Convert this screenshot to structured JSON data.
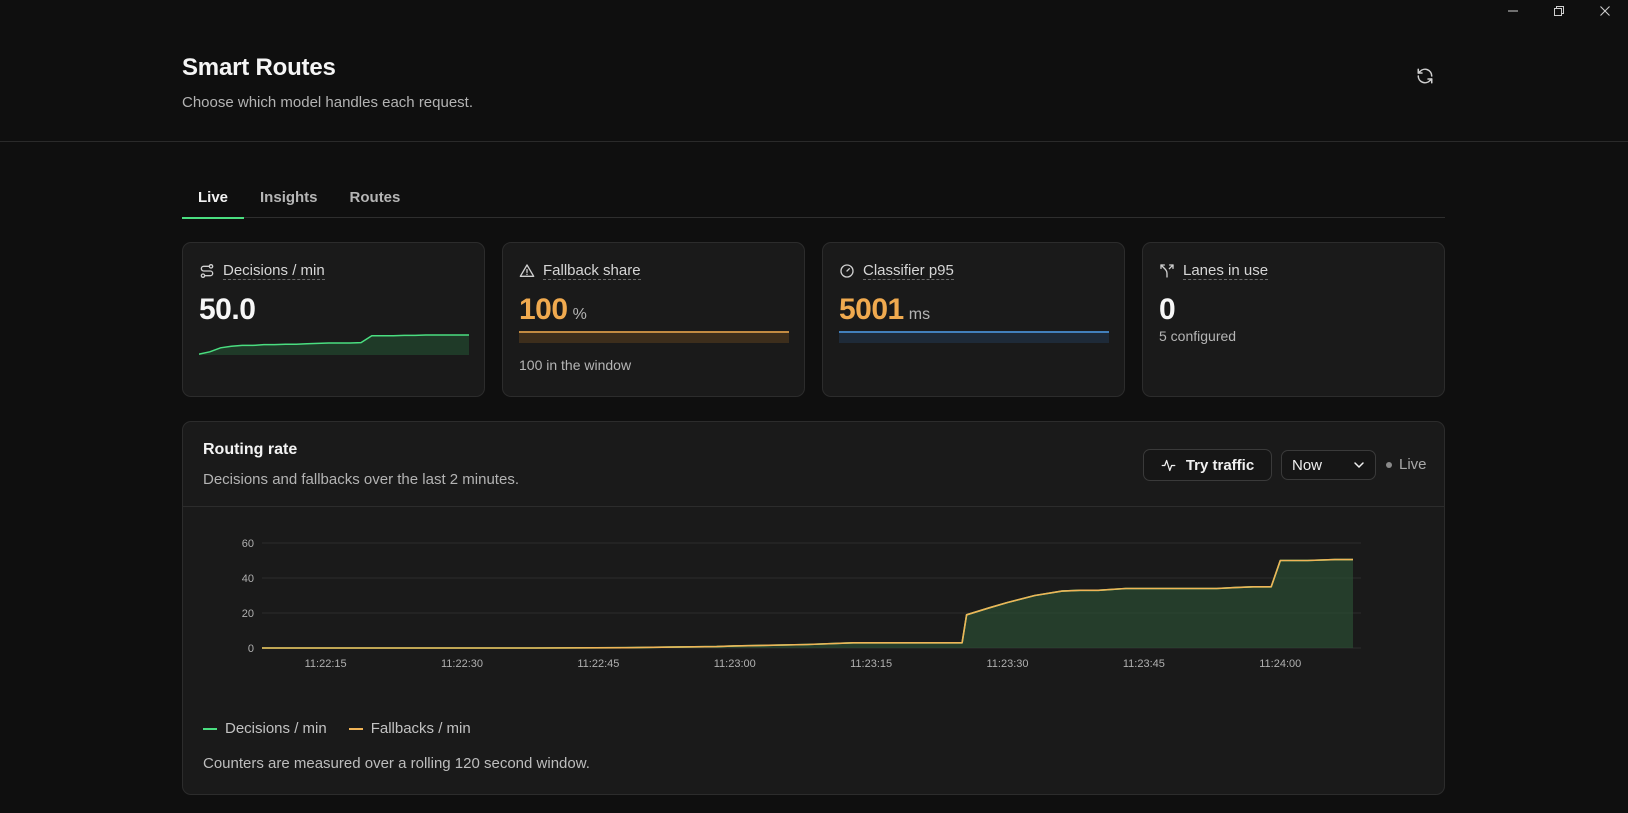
{
  "header": {
    "title": "Smart Routes",
    "subtitle": "Choose which model handles each request.",
    "refresh_icon": "refresh-icon"
  },
  "tabs": [
    {
      "label": "Live",
      "active": true
    },
    {
      "label": "Insights",
      "active": false
    },
    {
      "label": "Routes",
      "active": false
    }
  ],
  "cards": {
    "decisions": {
      "label": "Decisions / min",
      "value": "50.0",
      "icon": "route-icon"
    },
    "fallback": {
      "label": "Fallback share",
      "value": "100",
      "unit": "%",
      "note": "100 in the window",
      "icon": "warning-icon"
    },
    "classifier": {
      "label": "Classifier p95",
      "value": "5001",
      "unit": "ms",
      "icon": "gauge-icon"
    },
    "lanes": {
      "label": "Lanes in use",
      "value": "0",
      "note": "5 configured",
      "icon": "split-icon"
    }
  },
  "sparklines": {
    "decisions": [
      2,
      8,
      18,
      22,
      24,
      24,
      26,
      26,
      27,
      27,
      28,
      29,
      30,
      30,
      30,
      31,
      48,
      48,
      48,
      49,
      49,
      50,
      50,
      50,
      50,
      50
    ],
    "fallback_share": [
      100,
      100
    ],
    "classifier_p95": [
      5001,
      5001
    ]
  },
  "chart_panel": {
    "title": "Routing rate",
    "subtitle": "Decisions and fallbacks over the last 2 minutes.",
    "try_button": "Try traffic",
    "range_select": "Now",
    "live_label": "Live",
    "footnote": "Counters are measured over a rolling 120 second window."
  },
  "chart_data": {
    "type": "area",
    "x_ticks": [
      "11:22:15",
      "11:22:30",
      "11:22:45",
      "11:23:00",
      "11:23:15",
      "11:23:30",
      "11:23:45",
      "11:24:00"
    ],
    "y_ticks": [
      0,
      20,
      40,
      60
    ],
    "ylim": [
      0,
      60
    ],
    "x_seconds_range": [
      0,
      120
    ],
    "x_seconds": [
      0,
      10,
      20,
      30,
      40,
      45,
      50,
      52,
      55,
      60,
      65,
      67,
      70,
      77,
      77.5,
      80,
      82,
      85,
      88,
      90,
      92,
      95,
      100,
      105,
      107,
      109,
      111,
      112,
      115,
      118,
      120
    ],
    "series": [
      {
        "name": "Decisions / min",
        "color": "#4ade80",
        "values": [
          0,
          0,
          0,
          0,
          0.2,
          0.5,
          0.8,
          1.2,
          1.5,
          2,
          3,
          3,
          3,
          3,
          19,
          23,
          26,
          30,
          32.5,
          33,
          33,
          34,
          34,
          34,
          34.5,
          35,
          35,
          50,
          50,
          50.5,
          50.5
        ]
      },
      {
        "name": "Fallbacks / min",
        "color": "#f0b457",
        "values": [
          0,
          0,
          0,
          0,
          0.2,
          0.5,
          0.8,
          1.2,
          1.5,
          2,
          3,
          3,
          3,
          3,
          19,
          23,
          26,
          30,
          32.5,
          33,
          33,
          34,
          34,
          34,
          34.5,
          35,
          35,
          50,
          50,
          50.5,
          50.5
        ]
      }
    ],
    "grid": true,
    "legend_position": "bottom-left"
  }
}
